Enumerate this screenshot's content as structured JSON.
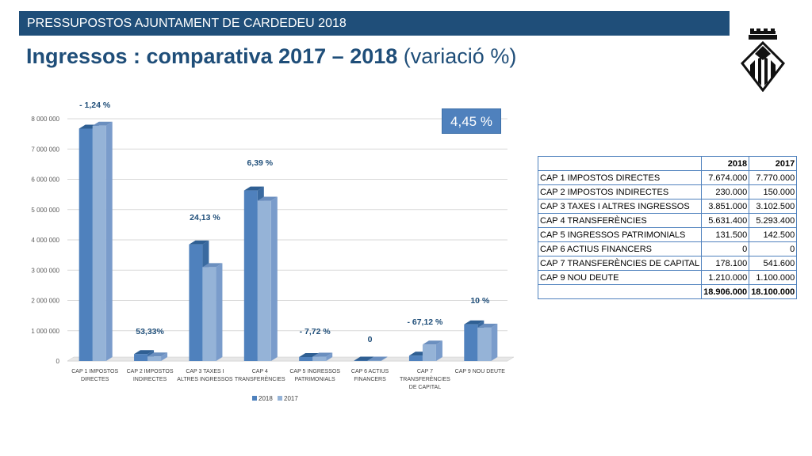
{
  "header": {
    "banner": "PRESSUPOSTOS AJUNTAMENT DE CARDEDEU 2018",
    "title_bold": "Ingressos : comparativa 2017 – 2018",
    "title_regular": "(variació %)"
  },
  "crest": {
    "icon": "city-crest-icon"
  },
  "badge": {
    "total_variation": "4,45 %"
  },
  "table": {
    "headers": [
      "",
      "2018",
      "2017"
    ],
    "rows": [
      [
        "CAP 1 IMPOSTOS DIRECTES",
        "7.674.000",
        "7.770.000"
      ],
      [
        "CAP 2 IMPOSTOS INDIRECTES",
        "230.000",
        "150.000"
      ],
      [
        "CAP 3 TAXES I ALTRES INGRESSOS",
        "3.851.000",
        "3.102.500"
      ],
      [
        "CAP 4 TRANSFERÈNCIES",
        "5.631.400",
        "5.293.400"
      ],
      [
        "CAP 5 INGRESSOS PATRIMONIALS",
        "131.500",
        "142.500"
      ],
      [
        "CAP 6 ACTIUS FINANCERS",
        "0",
        "0"
      ],
      [
        "CAP 7 TRANSFERÈNCIES DE CAPITAL",
        "178.100",
        "541.600"
      ],
      [
        "CAP 9 NOU DEUTE",
        "1.210.000",
        "1.100.000"
      ]
    ],
    "totals": [
      "",
      "18.906.000",
      "18.100.000"
    ]
  },
  "chart_data": {
    "type": "bar",
    "categories": [
      [
        "CAP 1 IMPOSTOS",
        "DIRECTES"
      ],
      [
        "CAP 2 IMPOSTOS",
        "INDIRECTES"
      ],
      [
        "CAP 3 TAXES I",
        "ALTRES INGRESSOS"
      ],
      [
        "CAP 4",
        "TRANSFERÈNCIES"
      ],
      [
        "CAP 5 INGRESSOS",
        "PATRIMONIALS"
      ],
      [
        "CAP 6 ACTIUS",
        "FINANCERS"
      ],
      [
        "CAP 7",
        "TRANSFERÈNCIES",
        "DE CAPITAL"
      ],
      [
        "CAP 9 NOU DEUTE"
      ]
    ],
    "series": [
      {
        "name": "2018",
        "values": [
          7674000,
          230000,
          3851000,
          5631400,
          131500,
          0,
          178100,
          1210000
        ]
      },
      {
        "name": "2017",
        "values": [
          7770000,
          150000,
          3102500,
          5293400,
          142500,
          0,
          541600,
          1100000
        ]
      }
    ],
    "annotations": [
      "- 1,24 %",
      "53,33%",
      "24,13 %",
      "6,39 %",
      "- 7,72 %",
      "0",
      "- 67,12 %",
      "10 %"
    ],
    "ylim": [
      0,
      8000000
    ],
    "yticks": [
      0,
      1000000,
      2000000,
      3000000,
      4000000,
      5000000,
      6000000,
      7000000,
      8000000
    ],
    "ytick_labels": [
      "0",
      "1 000 000",
      "2 000 000",
      "3 000 000",
      "4 000 000",
      "5 000 000",
      "6 000 000",
      "7 000 000",
      "8 000 000"
    ],
    "grid": true,
    "legend_position": "bottom",
    "colors": {
      "2018": "#4f81bd",
      "2017": "#95b3d7",
      "grid": "#d9d9d9",
      "label": "#1f4e79"
    }
  }
}
